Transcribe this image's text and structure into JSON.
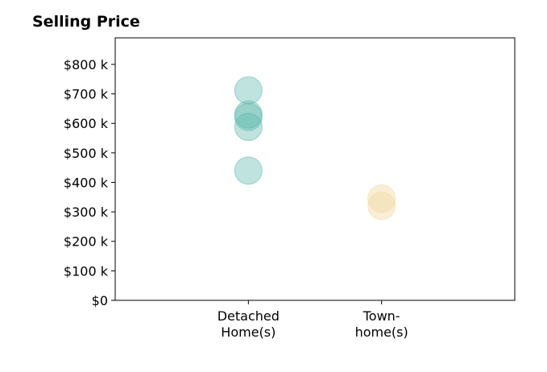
{
  "chart_data": {
    "type": "scatter",
    "title": "Selling Price",
    "xlabel": "",
    "ylabel": "",
    "categories": [
      [
        "Detached",
        "Home(s)"
      ],
      [
        "Town-",
        "home(s)"
      ]
    ],
    "xlim": [
      0,
      3
    ],
    "ylim": [
      0,
      890
    ],
    "yticks": [
      0,
      100,
      200,
      300,
      400,
      500,
      600,
      700,
      800
    ],
    "ytick_labels": [
      "$0",
      "$100 k",
      "$200 k",
      "$300 k",
      "$400 k",
      "$500 k",
      "$600 k",
      "$700 k",
      "$800 k"
    ],
    "grid": false,
    "series": [
      {
        "category_index": 0,
        "color": "#5fb8ad",
        "values": [
          712,
          630,
          622,
          588,
          440
        ]
      },
      {
        "category_index": 1,
        "color": "#f0d79a",
        "values": [
          345,
          320
        ]
      }
    ],
    "marker_opacity": 0.4
  }
}
